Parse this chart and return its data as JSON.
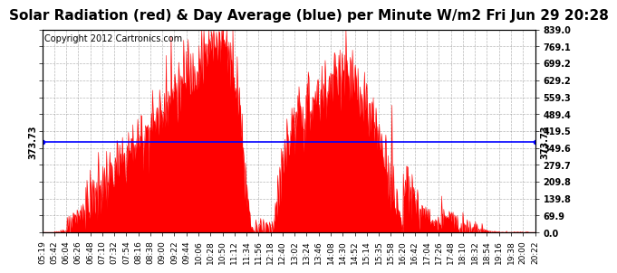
{
  "title": "Solar Radiation (red) & Day Average (blue) per Minute W/m2 Fri Jun 29 20:28",
  "copyright": "Copyright 2012 Cartronics.com",
  "ymax": 839.0,
  "ymin": 0.0,
  "yticks": [
    0.0,
    69.9,
    139.8,
    209.8,
    279.7,
    349.6,
    419.5,
    489.4,
    559.3,
    629.2,
    699.2,
    769.1,
    839.0
  ],
  "avg_line": 373.73,
  "avg_label": "373.73",
  "x_labels": [
    "05:19",
    "05:42",
    "06:04",
    "06:26",
    "06:48",
    "07:10",
    "07:32",
    "07:54",
    "08:16",
    "08:38",
    "09:00",
    "09:22",
    "09:44",
    "10:06",
    "10:28",
    "10:50",
    "11:12",
    "11:34",
    "11:56",
    "12:18",
    "12:40",
    "13:02",
    "13:24",
    "13:46",
    "14:08",
    "14:30",
    "14:52",
    "15:14",
    "15:35",
    "15:58",
    "16:20",
    "16:42",
    "17:04",
    "17:26",
    "17:48",
    "18:10",
    "18:32",
    "18:54",
    "19:16",
    "19:38",
    "20:00",
    "20:22"
  ],
  "fill_color": "#FF0000",
  "avg_color": "#0000FF",
  "background_color": "#FFFFFF",
  "grid_color": "#888888",
  "title_fontsize": 11,
  "copyright_fontsize": 7,
  "tick_fontsize": 6.5,
  "ytick_fontsize": 7
}
